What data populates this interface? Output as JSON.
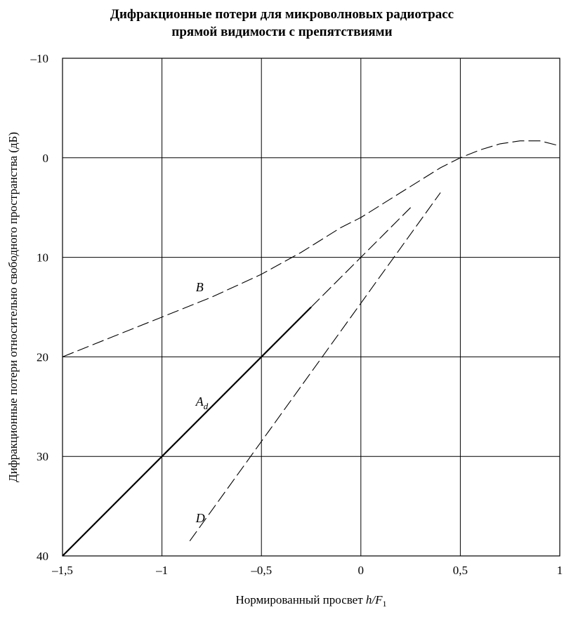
{
  "chart_data": {
    "type": "line",
    "title_lines": [
      "Дифракционные потери для микроволновых радиотрасс",
      "прямой видимости с препятствиями"
    ],
    "xlabel": "Нормированный просвет",
    "xlabel_var": "h/F",
    "xlabel_sub": "1",
    "ylabel": "Дифракционные потери относительно свободного пространства  (дБ)",
    "xlim": [
      -1.5,
      1
    ],
    "ylim": [
      -10,
      40
    ],
    "y_inverted": true,
    "grid": true,
    "x_ticks": [
      -1.5,
      -1,
      -0.5,
      0,
      0.5,
      1
    ],
    "x_tick_labels": [
      "–1,5",
      "–1",
      "–0,5",
      "0",
      "0,5",
      "1"
    ],
    "y_ticks": [
      -10,
      0,
      10,
      20,
      30,
      40
    ],
    "y_tick_labels": [
      "–10",
      "0",
      "10",
      "20",
      "30",
      "40"
    ],
    "series": [
      {
        "name": "B",
        "style": "dashed",
        "x": [
          -1.5,
          -1.25,
          -1.0,
          -0.75,
          -0.5,
          -0.3,
          -0.1,
          0.0,
          0.2,
          0.4,
          0.5,
          0.6,
          0.7,
          0.8,
          0.9,
          1.0
        ],
        "y": [
          20,
          18,
          16,
          14,
          11.7,
          9.5,
          7,
          6,
          3.5,
          1,
          0,
          -0.8,
          -1.4,
          -1.7,
          -1.7,
          -1.2
        ]
      },
      {
        "name": "Ad",
        "style": "solid",
        "x": [
          -1.5,
          -0.25
        ],
        "y": [
          40,
          15
        ]
      },
      {
        "name": "Ad",
        "style": "dashed",
        "x": [
          -0.25,
          0.25
        ],
        "y": [
          15,
          5
        ]
      },
      {
        "name": "D",
        "style": "dashed",
        "x": [
          -0.86,
          0.4
        ],
        "y": [
          38.5,
          3.5
        ]
      }
    ],
    "annotations": [
      {
        "text": "B",
        "x": -0.83,
        "y": 13
      },
      {
        "text": "A",
        "sub": "d",
        "x": -0.83,
        "y": 24.5
      },
      {
        "text": "D",
        "x": -0.83,
        "y": 36.2
      }
    ]
  }
}
